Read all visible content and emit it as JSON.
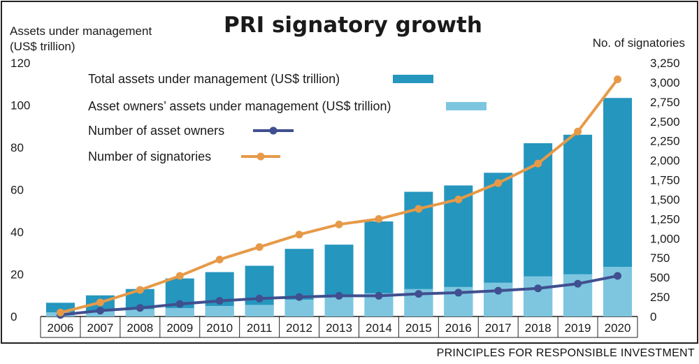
{
  "chart_data": {
    "type": "bar",
    "title": "PRI signatory growth",
    "ylabel_left": [
      "Assets under management",
      "(US$ trillion)"
    ],
    "ylabel_right": "No. of signatories",
    "source": "PRINCIPLES FOR RESPONSIBLE INVESTMENT",
    "categories": [
      "2006",
      "2007",
      "2008",
      "2009",
      "2010",
      "2011",
      "2012",
      "2013",
      "2014",
      "2015",
      "2016",
      "2017",
      "2018",
      "2019",
      "2020"
    ],
    "ylim_left": [
      0,
      120
    ],
    "yticks_left": [
      "0",
      "20",
      "40",
      "60",
      "80",
      "100",
      "120"
    ],
    "ylim_right": [
      0,
      3250
    ],
    "yticks_right": [
      "0",
      "250",
      "500",
      "750",
      "1,000",
      "1,250",
      "1,500",
      "1,750",
      "2,000",
      "2,250",
      "2,500",
      "2,750",
      "3,000",
      "3,250"
    ],
    "bar_series": [
      {
        "name": "Total assets under management  (US$ trillion)",
        "color": "#2596be",
        "values": [
          6.5,
          10,
          13,
          18,
          21,
          24,
          32,
          34,
          45,
          59,
          62,
          68,
          82,
          86,
          103.4
        ]
      },
      {
        "name": "Asset owners’ assets under management (US$ trillion)",
        "color": "#7ec6e0",
        "values": [
          2,
          2.5,
          3.5,
          4,
          5,
          5.5,
          8,
          10,
          11,
          13,
          14,
          16,
          19,
          20,
          23.5
        ]
      }
    ],
    "line_series": [
      {
        "name": "Number of asset owners",
        "color": "#404f8f",
        "values": [
          20,
          75,
          110,
          160,
          200,
          230,
          250,
          265,
          265,
          290,
          305,
          330,
          360,
          420,
          520
        ]
      },
      {
        "name": "Number of signatories",
        "color": "#e69a48",
        "values": [
          50,
          180,
          340,
          520,
          730,
          890,
          1050,
          1180,
          1250,
          1380,
          1500,
          1710,
          1960,
          2370,
          3040
        ]
      }
    ],
    "legend_position": "top-left"
  }
}
